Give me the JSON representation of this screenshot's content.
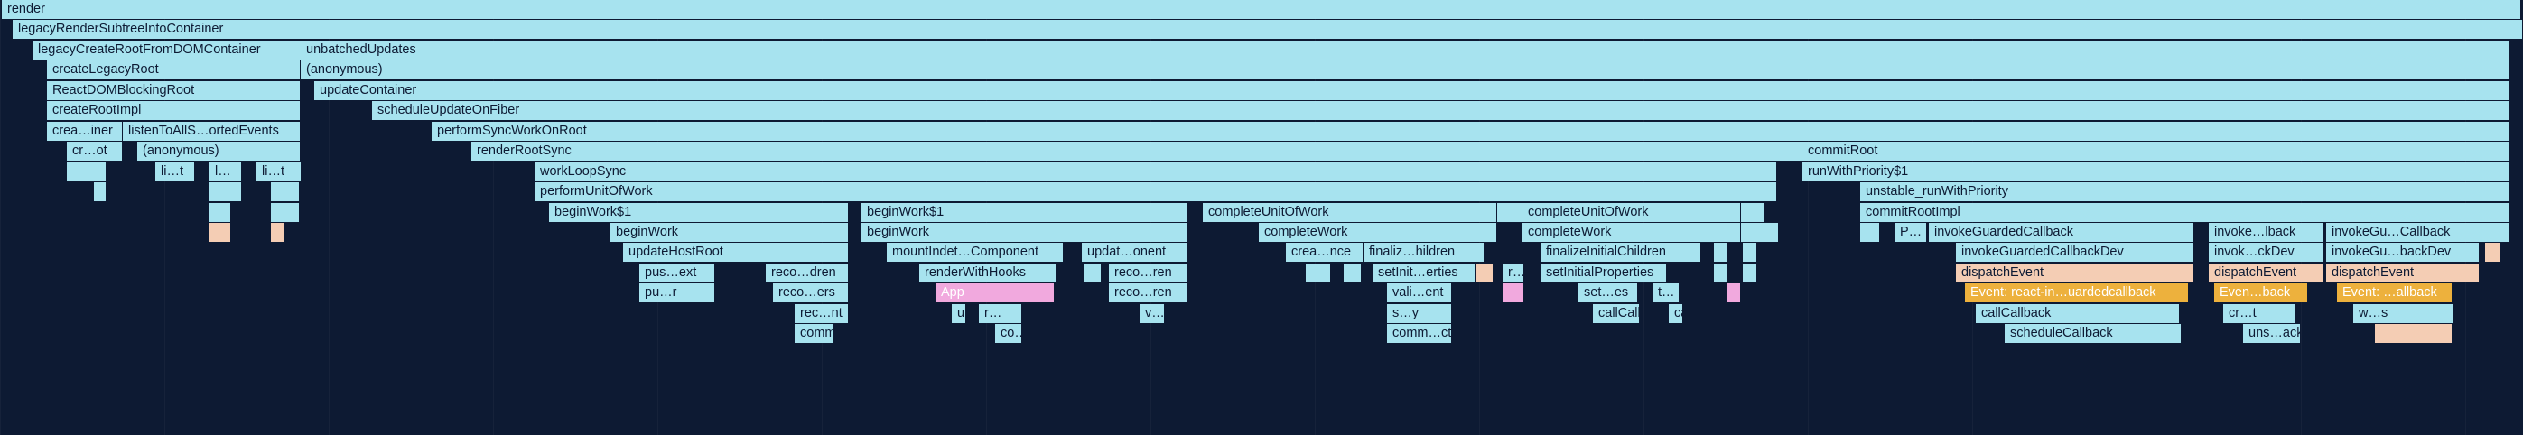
{
  "flamegraph": {
    "colors": {
      "normal": "#a7e3ef",
      "pink": "#f1a9de",
      "gold": "#edb13d",
      "peach": "#f4cdb4",
      "background": "#0d1a33"
    },
    "frames": [
      {
        "label": "render",
        "c": "normal"
      },
      {
        "label": "legacyRenderSubtreeIntoContainer",
        "c": "normal"
      },
      {
        "label": "legacyCreateRootFromDOMContainer",
        "c": "normal"
      },
      {
        "label": "unbatchedUpdates",
        "c": "normal"
      },
      {
        "label": "createLegacyRoot",
        "c": "normal"
      },
      {
        "label": "(anonymous)",
        "c": "normal"
      },
      {
        "label": "ReactDOMBlockingRoot",
        "c": "normal"
      },
      {
        "label": "updateContainer",
        "c": "normal"
      },
      {
        "label": "createRootImpl",
        "c": "normal"
      },
      {
        "label": "scheduleUpdateOnFiber",
        "c": "normal"
      },
      {
        "label": "crea…iner",
        "c": "normal"
      },
      {
        "label": "listenToAllS…ortedEvents",
        "c": "normal"
      },
      {
        "label": "performSyncWorkOnRoot",
        "c": "normal"
      },
      {
        "label": "cr…ot",
        "c": "normal"
      },
      {
        "label": "(anonymous)",
        "c": "normal"
      },
      {
        "label": "renderRootSync",
        "c": "normal"
      },
      {
        "label": "commitRoot",
        "c": "normal"
      },
      {
        "label": "",
        "c": "normal"
      },
      {
        "label": "li…t",
        "c": "normal"
      },
      {
        "label": "l…",
        "c": "normal"
      },
      {
        "label": "li…t",
        "c": "normal"
      },
      {
        "label": "workLoopSync",
        "c": "normal"
      },
      {
        "label": "runWithPriority$1",
        "c": "normal"
      },
      {
        "label": "",
        "c": "normal"
      },
      {
        "label": "",
        "c": "normal"
      },
      {
        "label": "",
        "c": "normal"
      },
      {
        "label": "performUnitOfWork",
        "c": "normal"
      },
      {
        "label": "unstable_runWithPriority",
        "c": "normal"
      },
      {
        "label": "",
        "c": "normal"
      },
      {
        "label": "",
        "c": "normal"
      },
      {
        "label": "beginWork$1",
        "c": "normal"
      },
      {
        "label": "beginWork$1",
        "c": "normal"
      },
      {
        "label": "completeUnitOfWork",
        "c": "normal"
      },
      {
        "label": "",
        "c": "normal"
      },
      {
        "label": "completeUnitOfWork",
        "c": "normal"
      },
      {
        "label": "",
        "c": "normal"
      },
      {
        "label": "",
        "c": "normal"
      },
      {
        "label": "commitRootImpl",
        "c": "normal"
      },
      {
        "label": "",
        "c": "peach"
      },
      {
        "label": "",
        "c": "peach"
      },
      {
        "label": "beginWork",
        "c": "normal"
      },
      {
        "label": "beginWork",
        "c": "normal"
      },
      {
        "label": "completeWork",
        "c": "normal"
      },
      {
        "label": "completeWork",
        "c": "normal"
      },
      {
        "label": "",
        "c": "normal"
      },
      {
        "label": "",
        "c": "normal"
      },
      {
        "label": "",
        "c": "normal"
      },
      {
        "label": "",
        "c": "normal"
      },
      {
        "label": "P…",
        "c": "normal"
      },
      {
        "label": "invokeGuardedCallback",
        "c": "normal"
      },
      {
        "label": "invoke…lback",
        "c": "normal"
      },
      {
        "label": "invokeGu…Callback",
        "c": "normal"
      },
      {
        "label": "updateHostRoot",
        "c": "normal"
      },
      {
        "label": "mountIndet…Component",
        "c": "normal"
      },
      {
        "label": "updat…onent",
        "c": "normal"
      },
      {
        "label": "crea…nce",
        "c": "normal"
      },
      {
        "label": "finaliz…hildren",
        "c": "normal"
      },
      {
        "label": "finalizeInitialChildren",
        "c": "normal"
      },
      {
        "label": "",
        "c": "normal"
      },
      {
        "label": "",
        "c": "normal"
      },
      {
        "label": "invokeGuardedCallbackDev",
        "c": "normal"
      },
      {
        "label": "invok…ckDev",
        "c": "normal"
      },
      {
        "label": "invokeGu…backDev",
        "c": "normal"
      },
      {
        "label": "",
        "c": "peach"
      },
      {
        "label": "pus…ext",
        "c": "normal"
      },
      {
        "label": "reco…dren",
        "c": "normal"
      },
      {
        "label": "renderWithHooks",
        "c": "normal"
      },
      {
        "label": "",
        "c": "normal"
      },
      {
        "label": "reco…ren",
        "c": "normal"
      },
      {
        "label": "",
        "c": "normal"
      },
      {
        "label": "",
        "c": "normal"
      },
      {
        "label": "setInit…erties",
        "c": "normal"
      },
      {
        "label": "",
        "c": "peach"
      },
      {
        "label": "r…",
        "c": "normal"
      },
      {
        "label": "setInitialProperties",
        "c": "normal"
      },
      {
        "label": "",
        "c": "normal"
      },
      {
        "label": "",
        "c": "normal"
      },
      {
        "label": "dispatchEvent",
        "c": "peach"
      },
      {
        "label": "dispatchEvent",
        "c": "peach"
      },
      {
        "label": "dispatchEvent",
        "c": "peach"
      },
      {
        "label": "pu…r",
        "c": "normal"
      },
      {
        "label": "reco…ers",
        "c": "normal"
      },
      {
        "label": "App",
        "c": "pink"
      },
      {
        "label": "reco…ren",
        "c": "normal"
      },
      {
        "label": "vali…ent",
        "c": "normal"
      },
      {
        "label": "",
        "c": "pink"
      },
      {
        "label": "set…es",
        "c": "normal"
      },
      {
        "label": "t…",
        "c": "normal"
      },
      {
        "label": "",
        "c": "pink"
      },
      {
        "label": "Event: react-in…uardedcallback",
        "c": "gold"
      },
      {
        "label": "Even…back",
        "c": "gold"
      },
      {
        "label": "Event: …allback",
        "c": "gold"
      },
      {
        "label": "rec…nt",
        "c": "normal"
      },
      {
        "label": "u…t",
        "c": "normal"
      },
      {
        "label": "r…",
        "c": "normal"
      },
      {
        "label": "v…2",
        "c": "normal"
      },
      {
        "label": "s…y",
        "c": "normal"
      },
      {
        "label": "callCallback",
        "c": "normal"
      },
      {
        "label": "call…ack",
        "c": "normal"
      },
      {
        "label": "callCallback",
        "c": "normal"
      },
      {
        "label": "cr…t",
        "c": "normal"
      },
      {
        "label": "w…s",
        "c": "normal"
      },
      {
        "label": "commitBefor…tionEffects",
        "c": "normal"
      },
      {
        "label": "co…ts",
        "c": "normal"
      },
      {
        "label": "comm…cts",
        "c": "normal"
      },
      {
        "label": "scheduleCallback",
        "c": "normal"
      },
      {
        "label": "uns…ack",
        "c": "normal"
      },
      {
        "label": "",
        "c": "peach"
      }
    ]
  }
}
